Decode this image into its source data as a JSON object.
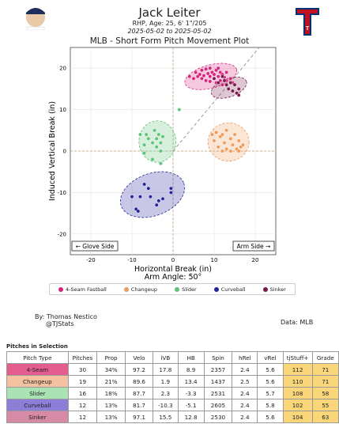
{
  "header": {
    "player_name": "Jack Leiter",
    "subtitle": "RHP, Age: 25, 6' 1\"/205",
    "dates": "2025-05-02 to 2025-05-02",
    "chart_title": "MLB - Short Form Pitch Movement Plot",
    "headshot_icon": "player-headshot-icon",
    "team_logo_icon": "rangers-logo-icon",
    "team_logo_letter": "T"
  },
  "chart_data": {
    "type": "scatter",
    "title": "MLB - Short Form Pitch Movement Plot",
    "xlabel": "Horizontal Break (in)",
    "ylabel": "Induced Vertical Break (in)",
    "arm_angle_label": "Arm Angle: 50°",
    "arm_angle_deg": 50,
    "xlim": [
      -25,
      25
    ],
    "ylim": [
      -25,
      25
    ],
    "xticks": [
      -20,
      -10,
      0,
      10,
      20
    ],
    "yticks": [
      -20,
      -10,
      0,
      10,
      20
    ],
    "x_tick_labels": [
      "-20",
      "-10",
      "0",
      "10",
      "20"
    ],
    "y_tick_labels": [
      "-20",
      "-10",
      "0",
      "10",
      "20"
    ],
    "glove_side_label": "← Glove Side",
    "arm_side_label": "Arm Side →",
    "grid": true,
    "series": [
      {
        "name": "4-Seam Fastball",
        "color": "#d6247c",
        "points": [
          [
            4,
            18
          ],
          [
            5,
            17.5
          ],
          [
            5.5,
            19
          ],
          [
            6,
            18
          ],
          [
            6.5,
            18.5
          ],
          [
            7,
            19.5
          ],
          [
            7,
            17.5
          ],
          [
            7.5,
            18.2
          ],
          [
            8,
            19.8
          ],
          [
            8,
            17
          ],
          [
            8.5,
            18.7
          ],
          [
            9,
            20
          ],
          [
            9,
            18
          ],
          [
            9,
            16.8
          ],
          [
            9.5,
            19
          ],
          [
            10,
            18.5
          ],
          [
            10,
            17.5
          ],
          [
            10.5,
            19.5
          ],
          [
            10.5,
            16.5
          ],
          [
            11,
            18
          ],
          [
            11,
            20
          ],
          [
            11.5,
            17
          ],
          [
            11.5,
            19
          ],
          [
            12,
            18.5
          ],
          [
            12,
            16
          ],
          [
            12.5,
            17.8
          ],
          [
            13,
            19
          ],
          [
            13,
            17
          ],
          [
            14,
            17.5
          ],
          [
            14.5,
            16.5
          ]
        ],
        "ellipse": {
          "cx": 9.2,
          "cy": 18.0,
          "rx": 6.5,
          "ry": 2.8,
          "angle": -15
        }
      },
      {
        "name": "Changeup",
        "color": "#ee9a5a",
        "points": [
          [
            9.5,
            4
          ],
          [
            10,
            2.5
          ],
          [
            10.5,
            4.5
          ],
          [
            11,
            1
          ],
          [
            11.5,
            3.5
          ],
          [
            12,
            0
          ],
          [
            12,
            4
          ],
          [
            12.5,
            2
          ],
          [
            13,
            5
          ],
          [
            13,
            0.5
          ],
          [
            14,
            3
          ],
          [
            14,
            0
          ],
          [
            14.5,
            1.5
          ],
          [
            15,
            4
          ],
          [
            15.5,
            0.5
          ],
          [
            16,
            0
          ],
          [
            16,
            2.5
          ],
          [
            16.5,
            1
          ],
          [
            17,
            1.5
          ]
        ],
        "ellipse": {
          "cx": 13.5,
          "cy": 2.2,
          "rx": 5,
          "ry": 4.6,
          "angle": 0
        }
      },
      {
        "name": "Slider",
        "color": "#5cc378",
        "points": [
          [
            -8,
            4
          ],
          [
            -7,
            1.5
          ],
          [
            -6.5,
            4
          ],
          [
            -6,
            3
          ],
          [
            -5,
            2
          ],
          [
            -4.5,
            5
          ],
          [
            -4,
            3
          ],
          [
            -4,
            1
          ],
          [
            -3.5,
            4
          ],
          [
            -3,
            2
          ],
          [
            -3,
            0
          ],
          [
            -2.5,
            3.5
          ],
          [
            -7,
            -0.5
          ],
          [
            -5,
            -2
          ],
          [
            -3,
            -3
          ],
          [
            1.5,
            10
          ]
        ],
        "ellipse": {
          "cx": -3.8,
          "cy": 2.3,
          "rx": 4.5,
          "ry": 5,
          "angle": 0
        }
      },
      {
        "name": "Curveball",
        "color": "#25229c",
        "points": [
          [
            -10,
            -11
          ],
          [
            -9,
            -14
          ],
          [
            -8.5,
            -14.5
          ],
          [
            -8,
            -11
          ],
          [
            -7,
            -8
          ],
          [
            -6,
            -9
          ],
          [
            -5.5,
            -11
          ],
          [
            -4,
            -13
          ],
          [
            -3.5,
            -12
          ],
          [
            -2.5,
            -11.5
          ],
          [
            -0.5,
            -9
          ],
          [
            -0.5,
            -10
          ]
        ],
        "ellipse": {
          "cx": -5,
          "cy": -10.5,
          "rx": 8.1,
          "ry": 5.1,
          "angle": -20
        }
      },
      {
        "name": "Sinker",
        "color": "#7b1a4e",
        "points": [
          [
            10,
            17.5
          ],
          [
            11,
            16.5
          ],
          [
            12,
            18
          ],
          [
            12.5,
            17
          ],
          [
            13,
            16
          ],
          [
            13.5,
            15
          ],
          [
            14,
            16.5
          ],
          [
            14.5,
            14.5
          ],
          [
            15,
            16
          ],
          [
            15.5,
            14
          ],
          [
            16,
            15
          ],
          [
            16,
            13.5
          ]
        ],
        "ellipse": {
          "cx": 13.6,
          "cy": 15.3,
          "rx": 4.5,
          "ry": 2.2,
          "angle": -20
        }
      }
    ]
  },
  "credits": {
    "by_label": "By: Thomas Nestico",
    "handle": "@TJStats",
    "source": "Data: MLB"
  },
  "table": {
    "title": "Pitches in Selection",
    "headers": [
      "Pitch Type",
      "Pitches",
      "Prop",
      "Velo",
      "iVB",
      "HB",
      "Spin",
      "hRel",
      "vRel",
      "tjStuff+",
      "Grade"
    ],
    "rows": [
      {
        "cells": [
          "4-Seam",
          "30",
          "34%",
          "97.2",
          "17.8",
          "8.9",
          "2357",
          "2.4",
          "5.6",
          "112",
          "71"
        ],
        "type_color": "#e35d8f"
      },
      {
        "cells": [
          "Changeup",
          "19",
          "21%",
          "89.6",
          "1.9",
          "13.4",
          "1437",
          "2.5",
          "5.6",
          "110",
          "71"
        ],
        "type_color": "#f4c2a1"
      },
      {
        "cells": [
          "Slider",
          "16",
          "18%",
          "87.7",
          "2.3",
          "-3.3",
          "2531",
          "2.4",
          "5.7",
          "108",
          "58"
        ],
        "type_color": "#a9e3b3"
      },
      {
        "cells": [
          "Curveball",
          "12",
          "13%",
          "81.7",
          "-10.3",
          "-5.1",
          "2605",
          "2.4",
          "5.8",
          "102",
          "55"
        ],
        "type_color": "#8c7fd8"
      },
      {
        "cells": [
          "Sinker",
          "12",
          "13%",
          "97.1",
          "15.5",
          "12.8",
          "2530",
          "2.4",
          "5.6",
          "104",
          "63"
        ],
        "type_color": "#d78aa6"
      }
    ]
  }
}
